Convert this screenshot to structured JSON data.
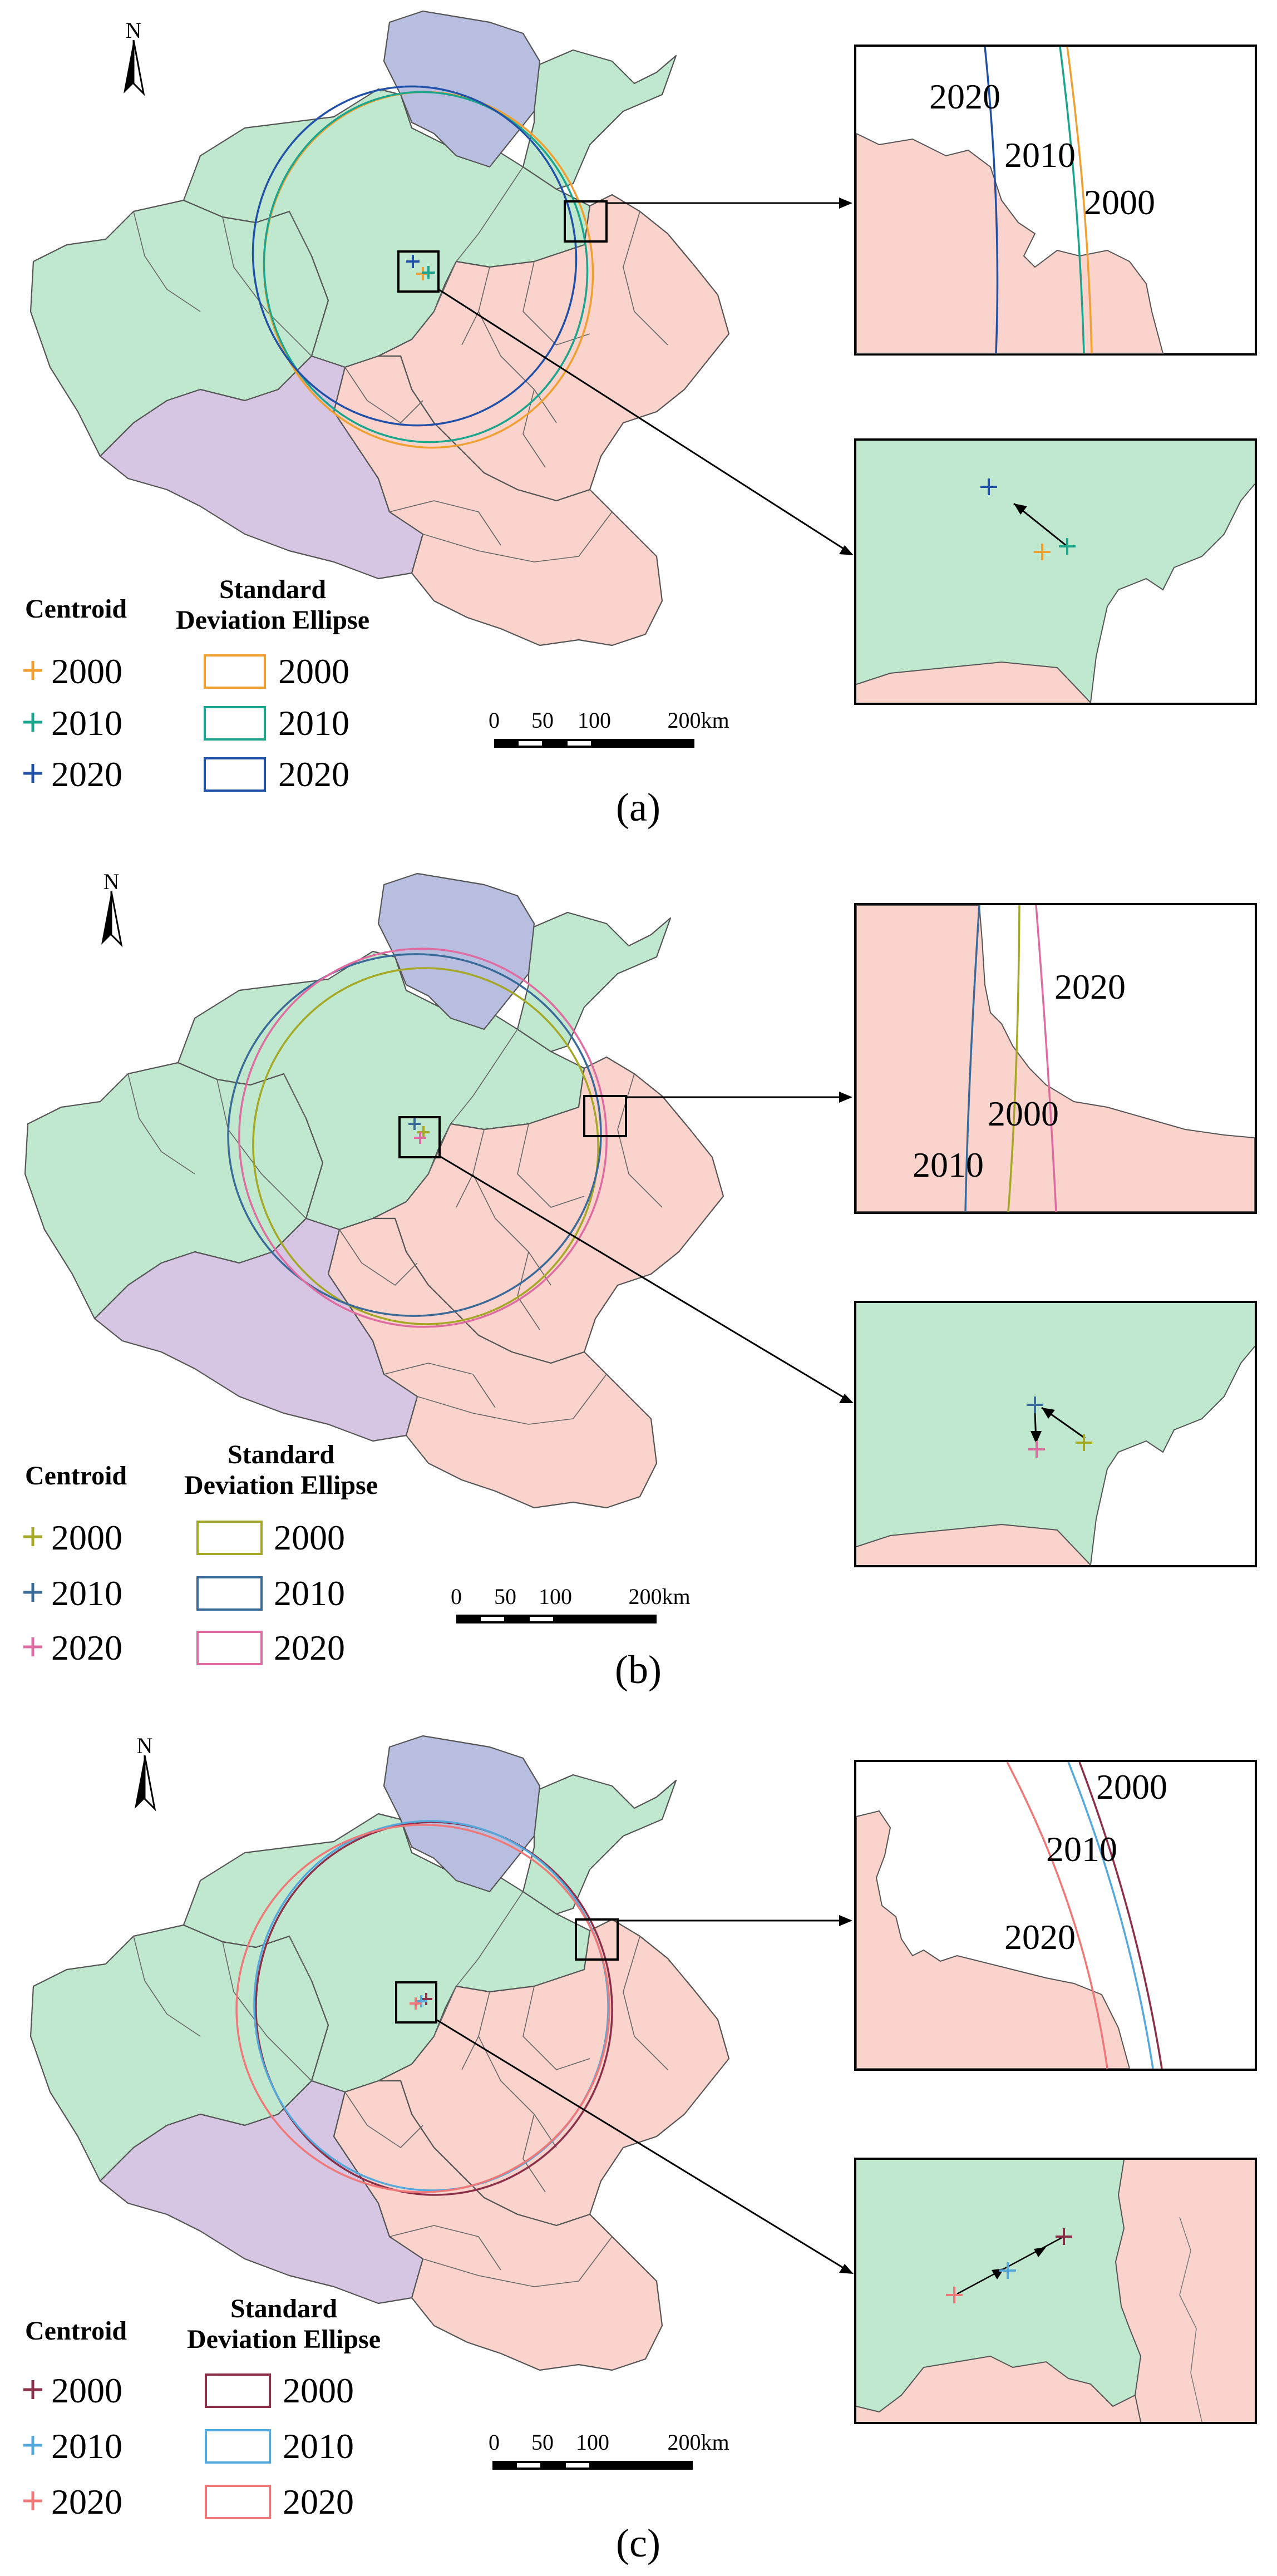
{
  "north_label": "N",
  "colors": {
    "green": "#bfe8cf",
    "pink": "#fbd3cd",
    "purple": "#d6c5e3",
    "blue": "#b8bedf"
  },
  "panels": [
    {
      "caption": "(a)",
      "legend": {
        "centroid_title": "Centroid",
        "ellipse_title_1": "Standard",
        "ellipse_title_2": "Deviation Ellipse",
        "items": [
          {
            "year": "2000",
            "color": "#f0a030"
          },
          {
            "year": "2010",
            "color": "#1aa58c"
          },
          {
            "year": "2020",
            "color": "#2150a8"
          }
        ]
      },
      "scale_labels": [
        "0",
        "50",
        "100",
        "200km"
      ],
      "inset_top_labels": [
        "2020",
        "2010",
        "2000"
      ]
    },
    {
      "caption": "(b)",
      "legend": {
        "centroid_title": "Centroid",
        "ellipse_title_1": "Standard",
        "ellipse_title_2": "Deviation Ellipse",
        "items": [
          {
            "year": "2000",
            "color": "#a5a825"
          },
          {
            "year": "2010",
            "color": "#3a6a98"
          },
          {
            "year": "2020",
            "color": "#df6ca0"
          }
        ]
      },
      "scale_labels": [
        "0",
        "50",
        "100",
        "200km"
      ],
      "inset_top_labels": [
        "2020",
        "2000",
        "2010"
      ]
    },
    {
      "caption": "(c)",
      "legend": {
        "centroid_title": "Centroid",
        "ellipse_title_1": "Standard",
        "ellipse_title_2": "Deviation Ellipse",
        "items": [
          {
            "year": "2000",
            "color": "#8b3048"
          },
          {
            "year": "2010",
            "color": "#55a8dc"
          },
          {
            "year": "2020",
            "color": "#f07878"
          }
        ]
      },
      "scale_labels": [
        "0",
        "50",
        "100",
        "200km"
      ],
      "inset_top_labels": [
        "2000",
        "2010",
        "2020"
      ]
    }
  ]
}
